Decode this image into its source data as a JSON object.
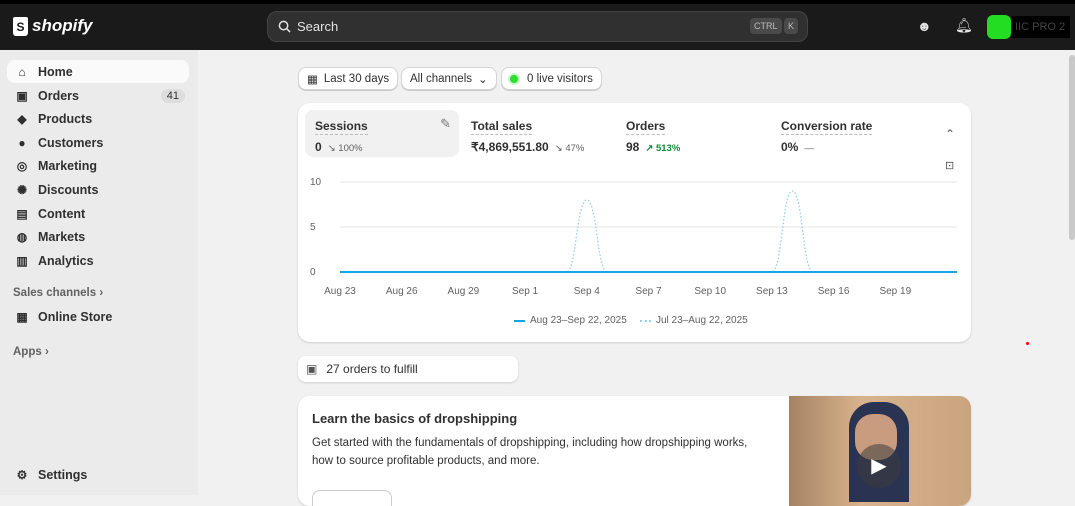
{
  "topbar": {
    "brand": "shopify",
    "search_placeholder": "Search",
    "shortcut_ctrl": "CTRL",
    "shortcut_k": "K",
    "store_name": "IIC PRO 2"
  },
  "sidebar": {
    "items": [
      {
        "label": "Home",
        "icon": "home-icon"
      },
      {
        "label": "Orders",
        "icon": "inbox-icon",
        "badge": "41"
      },
      {
        "label": "Products",
        "icon": "tag-icon"
      },
      {
        "label": "Customers",
        "icon": "person-icon"
      },
      {
        "label": "Marketing",
        "icon": "target-icon"
      },
      {
        "label": "Discounts",
        "icon": "discount-icon"
      },
      {
        "label": "Content",
        "icon": "content-icon"
      },
      {
        "label": "Markets",
        "icon": "globe-icon"
      },
      {
        "label": "Analytics",
        "icon": "bar-chart-icon"
      }
    ],
    "sales_channels": "Sales channels",
    "online_store": "Online Store",
    "apps": "Apps",
    "settings": "Settings"
  },
  "filters": {
    "date_range": "Last 30 days",
    "channels": "All channels",
    "live_visitors": "0 live visitors"
  },
  "metrics": [
    {
      "title": "Sessions",
      "value": "0",
      "delta": "100%",
      "direction": "down"
    },
    {
      "title": "Total sales",
      "value": "₹4,869,551.80",
      "delta": "47%",
      "direction": "down"
    },
    {
      "title": "Orders",
      "value": "98",
      "delta": "513%",
      "direction": "up"
    },
    {
      "title": "Conversion rate",
      "value": "0%",
      "delta": "—",
      "direction": "none"
    }
  ],
  "chart_data": {
    "type": "line",
    "x_ticks": [
      "Aug 23",
      "Aug 26",
      "Aug 29",
      "Sep 1",
      "Sep 4",
      "Sep 7",
      "Sep 10",
      "Sep 13",
      "Sep 16",
      "Sep 19"
    ],
    "y_ticks": [
      "10",
      "5",
      "0"
    ],
    "ylim": [
      0,
      10
    ],
    "x_start": "Aug 23",
    "x_end": "Sep 22",
    "grid": true,
    "legend_position": "bottom",
    "series": [
      {
        "name": "Aug 23–Sep 22, 2025",
        "style": "solid",
        "color": "#13a5e8",
        "values": [
          0,
          0,
          0,
          0,
          0,
          0,
          0,
          0,
          0,
          0,
          0,
          0,
          0,
          0,
          0,
          0,
          0,
          0,
          0,
          0,
          0,
          0,
          0,
          0,
          0,
          0,
          0,
          0,
          0,
          0,
          0
        ]
      },
      {
        "name": "Jul 23–Aug 22, 2025",
        "style": "dotted",
        "color": "#8fd0f0",
        "values": [
          0,
          0,
          0,
          0,
          0,
          0,
          0,
          0,
          0,
          0,
          0,
          0,
          8,
          0,
          0,
          0,
          0,
          0,
          0,
          0,
          0,
          0,
          9,
          0,
          0,
          0,
          0,
          0,
          0,
          0,
          0
        ]
      }
    ]
  },
  "fulfill": {
    "label": "27 orders to fulfill"
  },
  "learn": {
    "title": "Learn the basics of dropshipping",
    "body": "Get started with the fundamentals of dropshipping, including how dropshipping works, how to source profitable products, and more."
  }
}
